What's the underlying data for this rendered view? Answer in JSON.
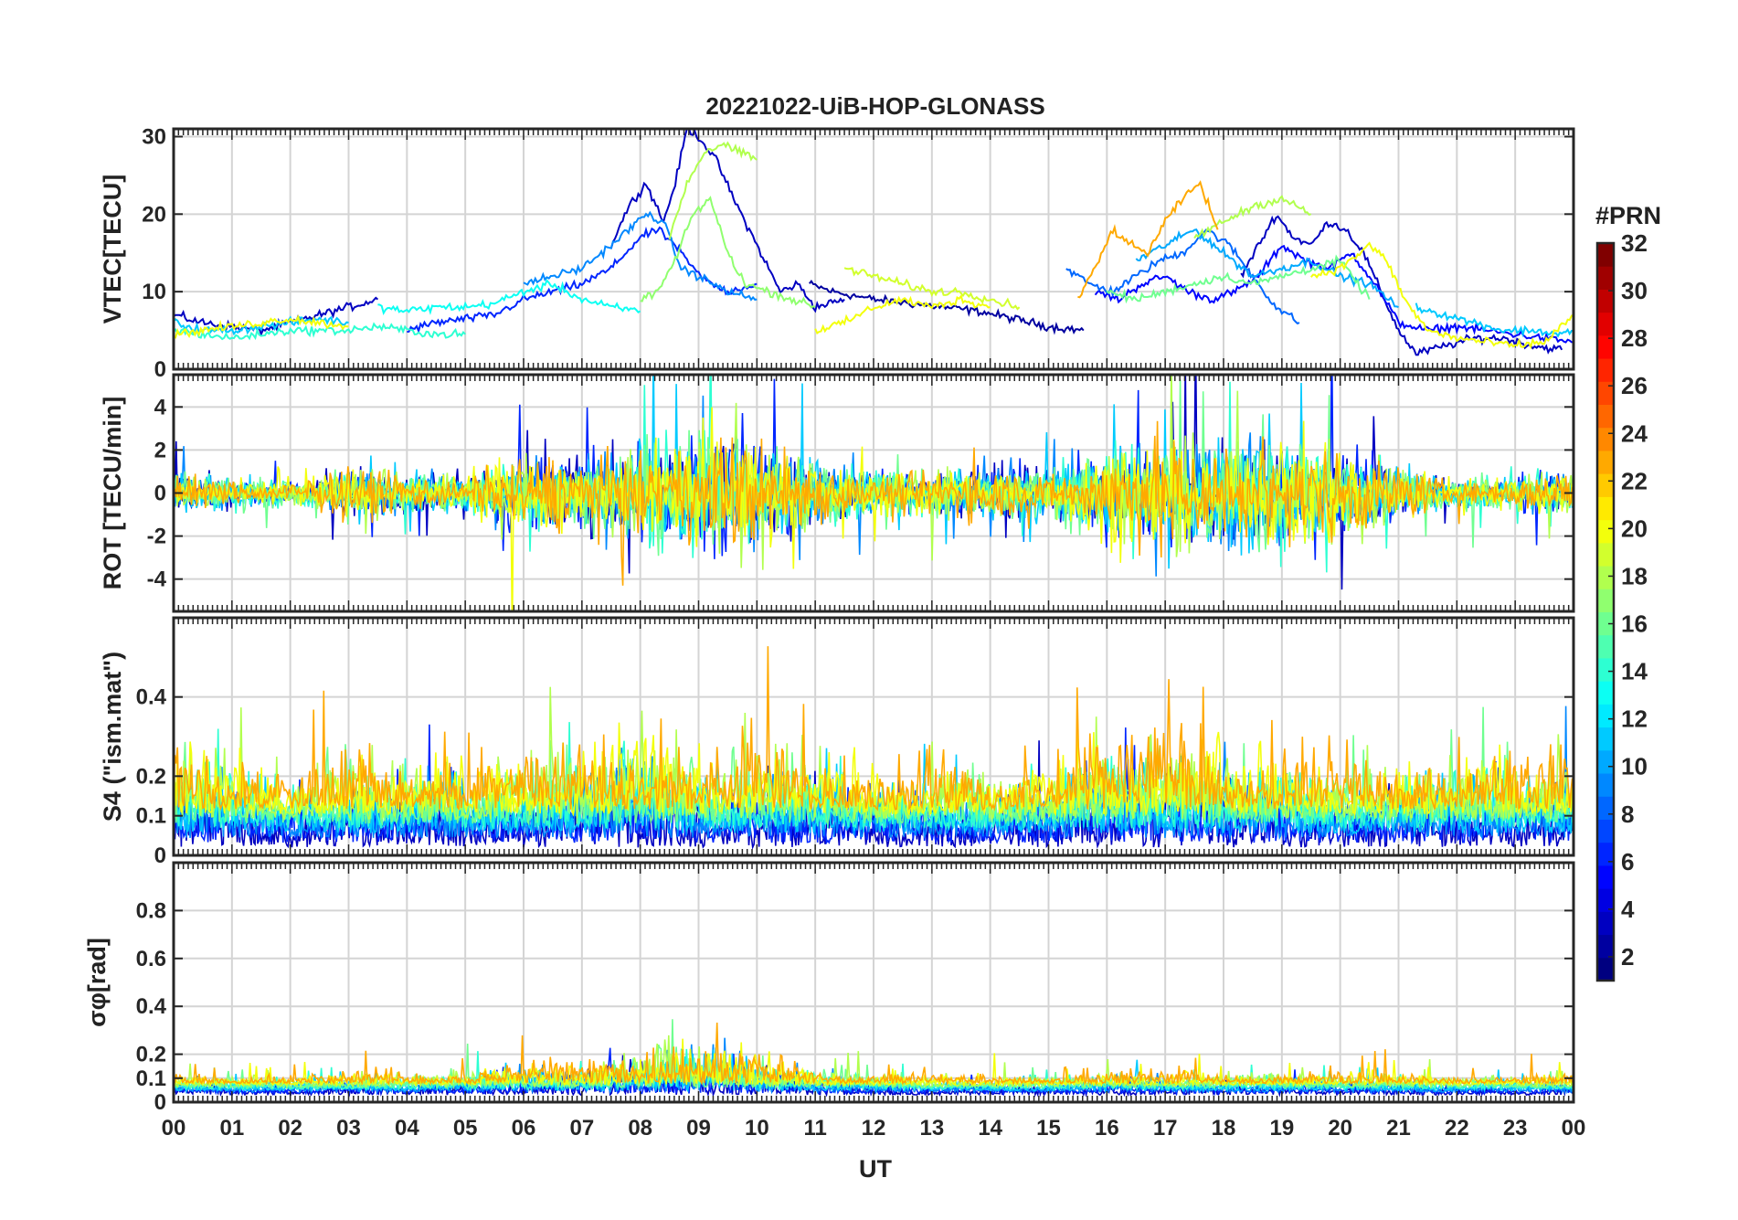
{
  "chart_data": {
    "type": "line",
    "title": "20221022-UiB-HOP-GLONASS",
    "xlabel": "UT",
    "x_ticks": [
      "00",
      "01",
      "02",
      "03",
      "04",
      "05",
      "06",
      "07",
      "08",
      "09",
      "10",
      "11",
      "12",
      "13",
      "14",
      "15",
      "16",
      "17",
      "18",
      "19",
      "20",
      "21",
      "22",
      "23",
      "00"
    ],
    "xlim": [
      0,
      24
    ],
    "grid": true,
    "colorbar": {
      "label": "#PRN",
      "range": [
        1,
        32
      ],
      "ticks": [
        "2",
        "4",
        "6",
        "8",
        "10",
        "12",
        "14",
        "16",
        "18",
        "20",
        "22",
        "24",
        "26",
        "28",
        "30",
        "32"
      ],
      "colormap": "jet",
      "levels": 32
    },
    "panels": [
      {
        "id": "vtec",
        "ylabel": "VTEC[TECU]",
        "ylim": [
          0,
          31
        ],
        "yticks": [
          "0",
          "10",
          "20",
          "30"
        ],
        "series": [
          {
            "prn": 2,
            "x": [
              10.9,
              11.3,
              12.0,
              12.6,
              13.2,
              13.8,
              14.4,
              15.0,
              15.6
            ],
            "y": [
              11,
              10,
              9,
              8.5,
              8,
              7.5,
              6.5,
              5.5,
              5
            ]
          },
          {
            "prn": 3,
            "x": [
              0,
              0.5,
              1,
              1.5,
              2,
              2.5,
              3,
              3.5
            ],
            "y": [
              7,
              6,
              5.5,
              5,
              6,
              7,
              8,
              9
            ]
          },
          {
            "prn": 3,
            "x": [
              7.5,
              7.8,
              8.1,
              8.4,
              8.6,
              8.8,
              9.0,
              9.3,
              9.6,
              10.0,
              10.4,
              10.7,
              11.0,
              11.5
            ],
            "y": [
              16,
              21,
              24,
              19,
              24,
              31,
              30,
              27,
              22,
              16,
              10,
              11,
              8,
              9
            ]
          },
          {
            "prn": 3,
            "x": [
              18.3,
              18.6,
              18.9,
              19.2,
              19.5,
              19.8,
              20.1,
              20.4,
              20.7,
              21.0,
              21.3,
              21.8,
              22.3,
              22.8,
              23.3,
              23.8
            ],
            "y": [
              12,
              16,
              20,
              17,
              16,
              19,
              18,
              15,
              10,
              5,
              2,
              3,
              4,
              4,
              3,
              2.5
            ]
          },
          {
            "prn": 5,
            "x": [
              15.8,
              16.2,
              16.6,
              17.0,
              17.4,
              17.8,
              18.2,
              18.6,
              19.0,
              19.4,
              19.8,
              20.2,
              20.6,
              21.0,
              21.5,
              22.0,
              22.5,
              23.0,
              23.5,
              24.0
            ],
            "y": [
              10,
              9,
              11,
              12,
              10,
              9,
              10,
              12,
              16,
              14,
              13,
              15,
              11,
              6,
              5,
              5.5,
              5,
              4.5,
              4,
              3.5
            ]
          },
          {
            "prn": 6,
            "x": [
              4.0,
              4.5,
              5.0,
              5.5,
              6.0,
              6.5,
              7.0,
              7.5,
              8.0,
              8.3,
              8.6,
              8.9,
              9.2,
              9.5,
              10.0
            ],
            "y": [
              5,
              6,
              6.5,
              7,
              9,
              10,
              11,
              13,
              17,
              18,
              16,
              13,
              11,
              10,
              11
            ]
          },
          {
            "prn": 8,
            "x": [
              15.3,
              15.7,
              16.1,
              16.5,
              16.9,
              17.3,
              17.7,
              18.1,
              18.5,
              18.9,
              19.3
            ],
            "y": [
              13,
              11,
              10,
              12,
              14,
              15,
              18,
              16,
              12,
              8,
              6
            ]
          },
          {
            "prn": 9,
            "x": [
              6.0,
              6.5,
              7.0,
              7.5,
              7.8,
              8.1,
              8.4,
              8.7,
              9.0,
              9.5,
              10.0
            ],
            "y": [
              11,
              12,
              13,
              16,
              18,
              20,
              19,
              13,
              12,
              10,
              9
            ]
          },
          {
            "prn": 10,
            "x": [
              16.5,
              17.0,
              17.5,
              18.0,
              18.5,
              19.0,
              19.5,
              20.0,
              20.5,
              21.0
            ],
            "y": [
              14,
              16,
              18,
              15,
              12,
              13,
              14,
              12,
              11,
              8
            ]
          },
          {
            "prn": 11,
            "x": [
              0,
              0.5,
              1.0,
              1.5,
              2.0,
              2.5,
              3.0
            ],
            "y": [
              6,
              5,
              5,
              5.5,
              6,
              6.5,
              6
            ]
          },
          {
            "prn": 11,
            "x": [
              21.3,
              21.8,
              22.3,
              22.8,
              23.3,
              23.8,
              24.0
            ],
            "y": [
              8,
              7,
              6,
              5,
              5,
              4.5,
              5
            ]
          },
          {
            "prn": 13,
            "x": [
              3.5,
              4.0,
              4.5,
              5.0,
              5.5,
              6.0,
              6.5,
              7.0,
              7.5,
              8.0
            ],
            "y": [
              8,
              7.5,
              8,
              8,
              8.5,
              10,
              11,
              9,
              8,
              7.5
            ]
          },
          {
            "prn": 14,
            "x": [
              0,
              0.5,
              1.0,
              1.5,
              2.0,
              2.5,
              3.0,
              3.5,
              4.0,
              4.5,
              5.0
            ],
            "y": [
              5,
              4.5,
              4,
              4.5,
              5,
              5,
              5,
              5.5,
              5,
              4.5,
              4.5
            ]
          },
          {
            "prn": 16,
            "x": [
              16.0,
              16.5,
              17.0,
              17.5,
              18.0,
              18.5,
              19.0,
              19.5,
              20.0,
              20.5
            ],
            "y": [
              10,
              9,
              10,
              11,
              12,
              11,
              12,
              13,
              14,
              9
            ]
          },
          {
            "prn": 17,
            "x": [
              8.0,
              8.3,
              8.6,
              8.9,
              9.2,
              9.5,
              9.8,
              10.2,
              10.6,
              11.0
            ],
            "y": [
              9,
              10,
              14,
              20,
              22,
              15,
              11,
              10,
              9,
              8
            ]
          },
          {
            "prn": 18,
            "x": [
              8.5,
              8.8,
              9.1,
              9.4,
              9.7,
              10.0
            ],
            "y": [
              17,
              24,
              28,
              29,
              28,
              27
            ]
          },
          {
            "prn": 18,
            "x": [
              17.5,
              18.0,
              18.5,
              19.0,
              19.5
            ],
            "y": [
              17,
              19,
              21,
              22,
              20
            ]
          },
          {
            "prn": 19,
            "x": [
              11.5,
              12.0,
              12.5,
              13.0,
              13.5,
              14.0,
              14.5
            ],
            "y": [
              13,
              12,
              11,
              10,
              10,
              9,
              8
            ]
          },
          {
            "prn": 20,
            "x": [
              0,
              0.5,
              1.0,
              1.5,
              2.0,
              2.5,
              3.0
            ],
            "y": [
              4.5,
              5,
              5.5,
              6,
              6.5,
              6,
              5.5
            ]
          },
          {
            "prn": 20,
            "x": [
              11.0,
              11.5,
              12.0,
              12.5,
              13.0,
              13.5,
              14.0
            ],
            "y": [
              5,
              6,
              8,
              9,
              8,
              9,
              8
            ]
          },
          {
            "prn": 20,
            "x": [
              19.5,
              20.0,
              20.5,
              20.8,
              21.1,
              21.5,
              22.0,
              22.5,
              23.0,
              23.5,
              24.0
            ],
            "y": [
              12,
              13,
              16,
              14,
              9,
              5,
              4,
              3.5,
              3,
              3.5,
              7
            ]
          },
          {
            "prn": 23,
            "x": [
              15.5,
              15.8,
              16.1,
              16.4,
              16.7,
              17.0,
              17.3,
              17.6,
              17.9
            ],
            "y": [
              9,
              13,
              18,
              16,
              15,
              19,
              22,
              24,
              18
            ]
          }
        ]
      },
      {
        "id": "rot",
        "ylabel": "ROT [TECU/min]",
        "ylim": [
          -5.5,
          5.5
        ],
        "yticks": [
          "-4",
          "-2",
          "0",
          "2",
          "4"
        ],
        "activity": [
          0.7,
          0.6,
          0.5,
          0.9,
          0.8,
          0.8,
          1.5,
          1.3,
          1.9,
          2.4,
          2.0,
          1.4,
          0.9,
          0.9,
          1.0,
          1.0,
          1.8,
          2.1,
          2.0,
          2.3,
          1.8,
          1.0,
          0.6,
          0.7,
          0.8
        ],
        "series_prns": [
          3,
          6,
          9,
          11,
          14,
          16,
          18,
          20,
          23
        ]
      },
      {
        "id": "s4",
        "ylabel": "S4 (\"ism.mat\")",
        "ylim": [
          0,
          0.6
        ],
        "yticks": [
          "0",
          "0.1",
          "0.2",
          "0.4"
        ],
        "activity": [
          0.25,
          0.18,
          0.14,
          0.22,
          0.15,
          0.2,
          0.2,
          0.22,
          0.3,
          0.2,
          0.22,
          0.2,
          0.15,
          0.18,
          0.15,
          0.15,
          0.3,
          0.3,
          0.2,
          0.2,
          0.18,
          0.15,
          0.2,
          0.22,
          0.22
        ],
        "series_prns": [
          3,
          6,
          9,
          11,
          14,
          16,
          18,
          20,
          23
        ]
      },
      {
        "id": "sigma",
        "ylabel": "σφ[rad]",
        "ylim": [
          0,
          1.0
        ],
        "yticks": [
          "0",
          "0.1",
          "0.2",
          "0.4",
          "0.6",
          "0.8"
        ],
        "activity": [
          0.06,
          0.05,
          0.05,
          0.06,
          0.06,
          0.09,
          0.11,
          0.13,
          0.2,
          0.22,
          0.16,
          0.1,
          0.06,
          0.05,
          0.05,
          0.05,
          0.08,
          0.07,
          0.06,
          0.06,
          0.07,
          0.06,
          0.05,
          0.05,
          0.05
        ],
        "series_prns": [
          3,
          6,
          9,
          11,
          14,
          16,
          18,
          20,
          23
        ]
      }
    ]
  }
}
